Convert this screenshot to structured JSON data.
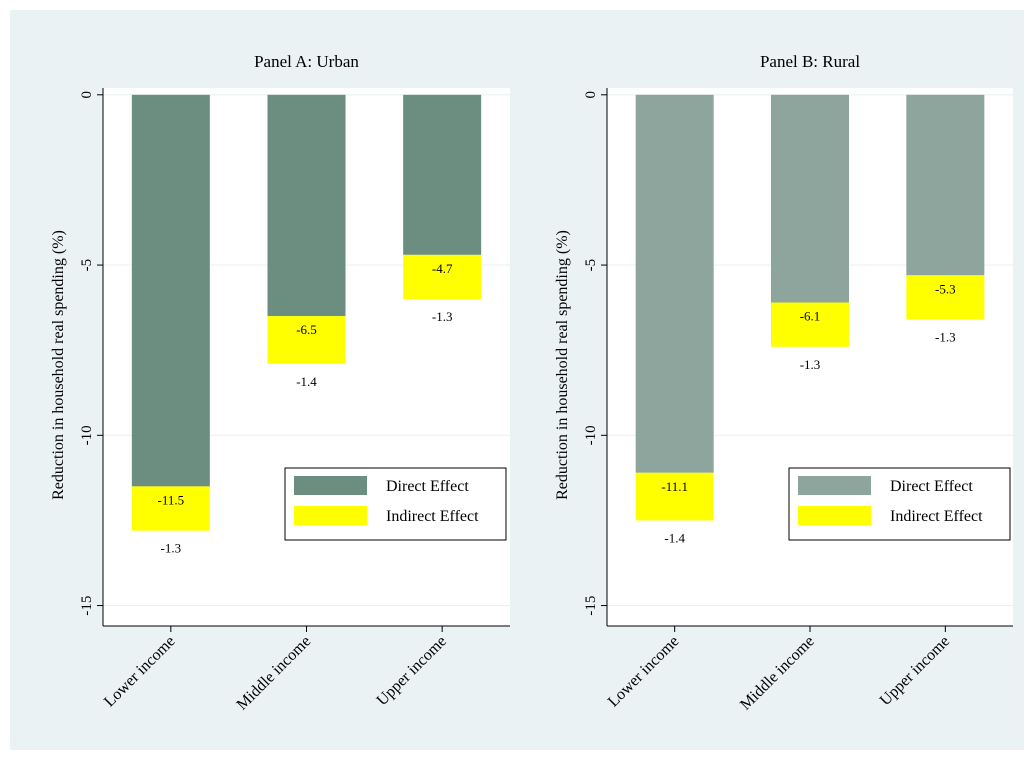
{
  "colors": {
    "background": "#eaf2f3",
    "plot_background": "#ffffff",
    "grid": "#eaf2f3",
    "indirect": "#ffff00"
  },
  "chart_data": [
    {
      "type": "bar",
      "stacked": true,
      "title": "Panel A: Urban",
      "xlabel": "",
      "ylabel": "Reduction in household real spending (%)",
      "ylim": [
        -15.6,
        0.2
      ],
      "yticks": [
        0,
        -5,
        -10,
        -15
      ],
      "grid": true,
      "legend_position": "bottom-right",
      "categories": [
        "Lower income",
        "Middle income",
        "Upper income"
      ],
      "series": [
        {
          "name": "Direct Effect",
          "color": "#6b8e80",
          "values": [
            -11.5,
            -6.5,
            -4.7
          ],
          "labels": [
            "-11.5",
            "-6.5",
            "-4.7"
          ]
        },
        {
          "name": "Indirect Effect",
          "color": "#ffff00",
          "values": [
            -1.3,
            -1.4,
            -1.3
          ],
          "labels": [
            "-1.3",
            "-1.4",
            "-1.3"
          ]
        }
      ]
    },
    {
      "type": "bar",
      "stacked": true,
      "title": "Panel B: Rural",
      "xlabel": "",
      "ylabel": "Reduction in household real spending (%)",
      "ylim": [
        -15.6,
        0.2
      ],
      "yticks": [
        0,
        -5,
        -10,
        -15
      ],
      "grid": true,
      "legend_position": "bottom-right",
      "categories": [
        "Lower income",
        "Middle income",
        "Upper income"
      ],
      "series": [
        {
          "name": "Direct Effect",
          "color": "#8da59c",
          "values": [
            -11.1,
            -6.1,
            -5.3
          ],
          "labels": [
            "-11.1",
            "-6.1",
            "-5.3"
          ]
        },
        {
          "name": "Indirect Effect",
          "color": "#ffff00",
          "values": [
            -1.4,
            -1.3,
            -1.3
          ],
          "labels": [
            "-1.4",
            "-1.3",
            "-1.3"
          ]
        }
      ]
    }
  ]
}
